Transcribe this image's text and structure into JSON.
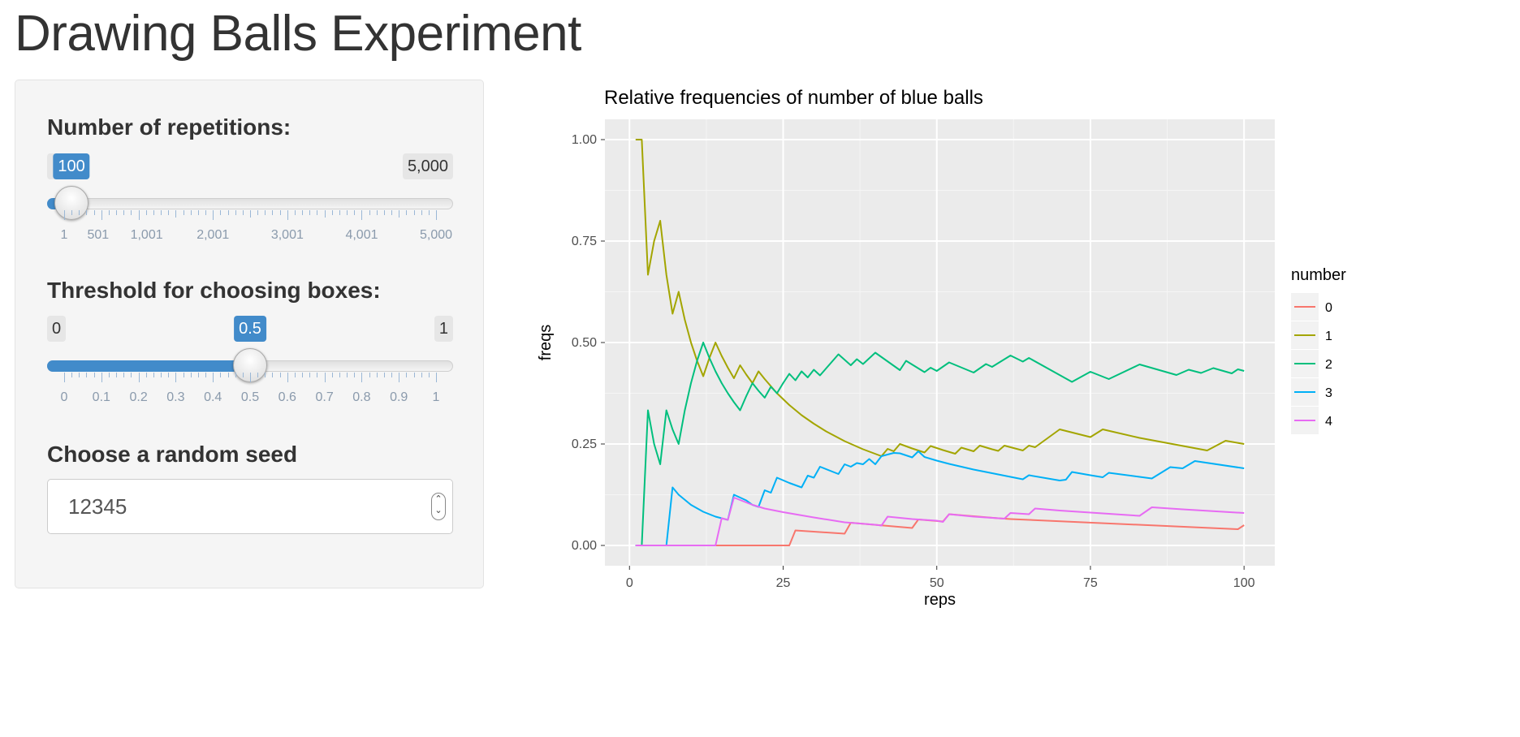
{
  "page": {
    "title": "Drawing Balls Experiment"
  },
  "sidebar": {
    "repetitions": {
      "label": "Number of repetitions:",
      "min_label": "1",
      "max_label": "5,000",
      "value_label": "100",
      "value": 100,
      "min": 1,
      "max": 5000,
      "tick_labels": [
        "1",
        "501",
        "1,001",
        "2,001",
        "3,001",
        "4,001",
        "5,000"
      ]
    },
    "threshold": {
      "label": "Threshold for choosing boxes:",
      "min_label": "0",
      "max_label": "1",
      "value_label": "0.5",
      "value": 0.5,
      "min": 0,
      "max": 1,
      "tick_labels": [
        "0",
        "0.1",
        "0.2",
        "0.3",
        "0.4",
        "0.5",
        "0.6",
        "0.7",
        "0.8",
        "0.9",
        "1"
      ]
    },
    "seed": {
      "label": "Choose a random seed",
      "value": "12345"
    }
  },
  "colors": {
    "accent": "#428bca",
    "panel_bg": "#ebebeb",
    "grid": "#ffffff"
  },
  "chart_data": {
    "type": "line",
    "title": "Relative frequencies of number of blue balls",
    "xlabel": "reps",
    "ylabel": "freqs",
    "xlim": [
      -4,
      105
    ],
    "ylim": [
      -0.05,
      1.05
    ],
    "x_ticks": [
      0,
      25,
      50,
      75,
      100
    ],
    "x_tick_labels": [
      "0",
      "25",
      "50",
      "75",
      "100"
    ],
    "y_ticks": [
      0,
      0.25,
      0.5,
      0.75,
      1
    ],
    "y_tick_labels": [
      "0.00",
      "0.25",
      "0.50",
      "0.75",
      "1.00"
    ],
    "grid": true,
    "legend": {
      "title": "number",
      "position": "right"
    },
    "series": [
      {
        "name": "0",
        "color": "#F8766D",
        "points": [
          [
            1,
            0
          ],
          [
            26,
            0
          ],
          [
            27,
            0.037
          ],
          [
            35,
            0.029
          ],
          [
            36,
            0.056
          ],
          [
            46,
            0.043
          ],
          [
            47,
            0.064
          ],
          [
            51,
            0.059
          ],
          [
            52,
            0.077
          ],
          [
            60,
            0.067
          ],
          [
            62,
            0.065
          ],
          [
            99,
            0.04
          ],
          [
            100,
            0.05
          ]
        ]
      },
      {
        "name": "1",
        "color": "#A3A500",
        "points": [
          [
            1,
            1
          ],
          [
            2,
            1
          ],
          [
            3,
            0.667
          ],
          [
            4,
            0.75
          ],
          [
            5,
            0.8
          ],
          [
            6,
            0.667
          ],
          [
            7,
            0.571
          ],
          [
            8,
            0.625
          ],
          [
            9,
            0.556
          ],
          [
            10,
            0.5
          ],
          [
            11,
            0.455
          ],
          [
            12,
            0.417
          ],
          [
            13,
            0.462
          ],
          [
            14,
            0.5
          ],
          [
            15,
            0.467
          ],
          [
            16,
            0.438
          ],
          [
            17,
            0.412
          ],
          [
            18,
            0.444
          ],
          [
            19,
            0.421
          ],
          [
            20,
            0.4
          ],
          [
            21,
            0.429
          ],
          [
            22,
            0.41
          ],
          [
            24,
            0.375
          ],
          [
            26,
            0.346
          ],
          [
            28,
            0.321
          ],
          [
            30,
            0.3
          ],
          [
            32,
            0.281
          ],
          [
            35,
            0.257
          ],
          [
            38,
            0.237
          ],
          [
            41,
            0.22
          ],
          [
            42,
            0.238
          ],
          [
            43,
            0.232
          ],
          [
            44,
            0.25
          ],
          [
            46,
            0.239
          ],
          [
            48,
            0.229
          ],
          [
            49,
            0.245
          ],
          [
            51,
            0.235
          ],
          [
            53,
            0.226
          ],
          [
            54,
            0.241
          ],
          [
            56,
            0.232
          ],
          [
            57,
            0.246
          ],
          [
            59,
            0.237
          ],
          [
            60,
            0.233
          ],
          [
            61,
            0.246
          ],
          [
            64,
            0.234
          ],
          [
            65,
            0.246
          ],
          [
            66,
            0.242
          ],
          [
            70,
            0.286
          ],
          [
            75,
            0.267
          ],
          [
            77,
            0.286
          ],
          [
            83,
            0.265
          ],
          [
            94,
            0.234
          ],
          [
            97,
            0.258
          ],
          [
            100,
            0.25
          ]
        ]
      },
      {
        "name": "2",
        "color": "#00BF7D",
        "points": [
          [
            1,
            0
          ],
          [
            2,
            0
          ],
          [
            3,
            0.333
          ],
          [
            4,
            0.25
          ],
          [
            5,
            0.2
          ],
          [
            6,
            0.333
          ],
          [
            7,
            0.286
          ],
          [
            8,
            0.25
          ],
          [
            9,
            0.333
          ],
          [
            10,
            0.4
          ],
          [
            11,
            0.455
          ],
          [
            12,
            0.5
          ],
          [
            13,
            0.462
          ],
          [
            14,
            0.429
          ],
          [
            15,
            0.4
          ],
          [
            16,
            0.375
          ],
          [
            17,
            0.353
          ],
          [
            18,
            0.333
          ],
          [
            19,
            0.368
          ],
          [
            20,
            0.4
          ],
          [
            21,
            0.381
          ],
          [
            22,
            0.364
          ],
          [
            23,
            0.391
          ],
          [
            24,
            0.375
          ],
          [
            25,
            0.4
          ],
          [
            26,
            0.423
          ],
          [
            27,
            0.407
          ],
          [
            28,
            0.429
          ],
          [
            29,
            0.414
          ],
          [
            30,
            0.433
          ],
          [
            31,
            0.419
          ],
          [
            34,
            0.471
          ],
          [
            36,
            0.444
          ],
          [
            37,
            0.459
          ],
          [
            38,
            0.447
          ],
          [
            40,
            0.475
          ],
          [
            44,
            0.432
          ],
          [
            45,
            0.455
          ],
          [
            48,
            0.427
          ],
          [
            49,
            0.438
          ],
          [
            50,
            0.43
          ],
          [
            52,
            0.451
          ],
          [
            56,
            0.426
          ],
          [
            58,
            0.447
          ],
          [
            59,
            0.44
          ],
          [
            62,
            0.468
          ],
          [
            64,
            0.453
          ],
          [
            65,
            0.462
          ],
          [
            72,
            0.403
          ],
          [
            75,
            0.428
          ],
          [
            78,
            0.41
          ],
          [
            83,
            0.446
          ],
          [
            89,
            0.42
          ],
          [
            91,
            0.433
          ],
          [
            93,
            0.425
          ],
          [
            95,
            0.437
          ],
          [
            98,
            0.424
          ],
          [
            99,
            0.434
          ],
          [
            100,
            0.43
          ]
        ]
      },
      {
        "name": "3",
        "color": "#00B0F6",
        "points": [
          [
            1,
            0
          ],
          [
            6,
            0
          ],
          [
            7,
            0.143
          ],
          [
            8,
            0.125
          ],
          [
            10,
            0.1
          ],
          [
            12,
            0.083
          ],
          [
            14,
            0.071
          ],
          [
            15,
            0.067
          ],
          [
            16,
            0.063
          ],
          [
            17,
            0.125
          ],
          [
            19,
            0.111
          ],
          [
            20,
            0.1
          ],
          [
            21,
            0.095
          ],
          [
            22,
            0.136
          ],
          [
            23,
            0.13
          ],
          [
            24,
            0.167
          ],
          [
            26,
            0.154
          ],
          [
            28,
            0.143
          ],
          [
            29,
            0.172
          ],
          [
            30,
            0.167
          ],
          [
            31,
            0.194
          ],
          [
            34,
            0.176
          ],
          [
            35,
            0.2
          ],
          [
            36,
            0.194
          ],
          [
            37,
            0.203
          ],
          [
            38,
            0.2
          ],
          [
            39,
            0.213
          ],
          [
            40,
            0.2
          ],
          [
            41,
            0.22
          ],
          [
            43,
            0.228
          ],
          [
            44,
            0.227
          ],
          [
            46,
            0.217
          ],
          [
            47,
            0.232
          ],
          [
            48,
            0.218
          ],
          [
            50,
            0.209
          ],
          [
            52,
            0.201
          ],
          [
            54,
            0.194
          ],
          [
            56,
            0.187
          ],
          [
            58,
            0.181
          ],
          [
            60,
            0.175
          ],
          [
            62,
            0.169
          ],
          [
            64,
            0.163
          ],
          [
            65,
            0.173
          ],
          [
            70,
            0.16
          ],
          [
            71,
            0.162
          ],
          [
            72,
            0.181
          ],
          [
            75,
            0.173
          ],
          [
            77,
            0.168
          ],
          [
            78,
            0.179
          ],
          [
            83,
            0.169
          ],
          [
            85,
            0.165
          ],
          [
            88,
            0.193
          ],
          [
            90,
            0.19
          ],
          [
            92,
            0.208
          ],
          [
            100,
            0.19
          ]
        ]
      },
      {
        "name": "4",
        "color": "#E76BF3",
        "points": [
          [
            1,
            0
          ],
          [
            14,
            0
          ],
          [
            15,
            0.067
          ],
          [
            16,
            0.063
          ],
          [
            17,
            0.118
          ],
          [
            20,
            0.1
          ],
          [
            22,
            0.091
          ],
          [
            25,
            0.082
          ],
          [
            30,
            0.069
          ],
          [
            35,
            0.057
          ],
          [
            40,
            0.051
          ],
          [
            41,
            0.049
          ],
          [
            42,
            0.071
          ],
          [
            46,
            0.065
          ],
          [
            50,
            0.061
          ],
          [
            51,
            0.058
          ],
          [
            52,
            0.077
          ],
          [
            56,
            0.071
          ],
          [
            60,
            0.067
          ],
          [
            61,
            0.066
          ],
          [
            62,
            0.08
          ],
          [
            64,
            0.078
          ],
          [
            65,
            0.077
          ],
          [
            66,
            0.091
          ],
          [
            70,
            0.086
          ],
          [
            80,
            0.076
          ],
          [
            83,
            0.073
          ],
          [
            85,
            0.094
          ],
          [
            90,
            0.089
          ],
          [
            100,
            0.08
          ]
        ]
      }
    ]
  }
}
